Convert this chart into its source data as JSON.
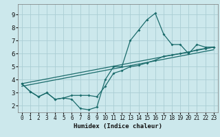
{
  "title": "",
  "xlabel": "Humidex (Indice chaleur)",
  "ylabel": "",
  "xlim": [
    -0.5,
    23.5
  ],
  "ylim": [
    1.5,
    9.8
  ],
  "yticks": [
    2,
    3,
    4,
    5,
    6,
    7,
    8,
    9
  ],
  "xticks": [
    0,
    1,
    2,
    3,
    4,
    5,
    6,
    7,
    8,
    9,
    10,
    11,
    12,
    13,
    14,
    15,
    16,
    17,
    18,
    19,
    20,
    21,
    22,
    23
  ],
  "bg_color": "#cce8ec",
  "grid_color": "#aacdd4",
  "line_color": "#1a6b6b",
  "line1_x": [
    0,
    1,
    2,
    3,
    4,
    5,
    6,
    7,
    8,
    9,
    10,
    11,
    12,
    13,
    14,
    15,
    16,
    17,
    18,
    19,
    20,
    21,
    22,
    23
  ],
  "line1_y": [
    3.7,
    3.1,
    2.7,
    3.0,
    2.5,
    2.6,
    2.5,
    1.8,
    1.7,
    1.9,
    4.0,
    5.0,
    5.0,
    7.0,
    7.8,
    8.6,
    9.1,
    7.5,
    6.7,
    6.7,
    6.0,
    6.7,
    6.5,
    6.5
  ],
  "line2_x": [
    0,
    1,
    2,
    3,
    4,
    5,
    6,
    7,
    8,
    9,
    10,
    11,
    12,
    13,
    14,
    15,
    16,
    17,
    18,
    19,
    20,
    21,
    22,
    23
  ],
  "line2_y": [
    3.7,
    3.1,
    2.7,
    3.0,
    2.5,
    2.6,
    2.8,
    2.8,
    2.8,
    2.7,
    3.5,
    4.5,
    4.7,
    5.0,
    5.1,
    5.3,
    5.5,
    5.8,
    5.9,
    6.0,
    6.1,
    6.3,
    6.4,
    6.5
  ],
  "line3_x": [
    0,
    23
  ],
  "line3_y": [
    3.7,
    6.5
  ],
  "line4_x": [
    0,
    23
  ],
  "line4_y": [
    3.5,
    6.3
  ]
}
